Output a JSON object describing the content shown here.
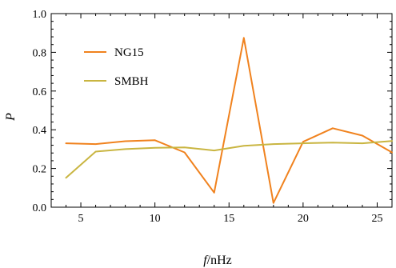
{
  "chart_data": {
    "type": "line",
    "title": "",
    "xlabel_italic": "f",
    "xlabel_unit": "/nHz",
    "ylabel": "P",
    "xlim": [
      3,
      26
    ],
    "ylim": [
      0.0,
      1.0
    ],
    "xticks": [
      5,
      10,
      15,
      20,
      25
    ],
    "xtick_labels": [
      "5",
      "10",
      "15",
      "20",
      "25"
    ],
    "yticks": [
      0.0,
      0.2,
      0.4,
      0.6,
      0.8,
      1.0
    ],
    "ytick_labels": [
      "0.0",
      "0.2",
      "0.4",
      "0.6",
      "0.8",
      "1.0"
    ],
    "grid": false,
    "legend_position": "top-left",
    "series": [
      {
        "name": "NG15",
        "color": "#f0821e",
        "x": [
          4,
          6,
          8,
          10,
          12,
          14,
          16,
          18,
          20,
          22,
          24,
          26
        ],
        "y": [
          0.33,
          0.326,
          0.341,
          0.346,
          0.283,
          0.075,
          0.875,
          0.022,
          0.338,
          0.408,
          0.37,
          0.283
        ]
      },
      {
        "name": "SMBH",
        "color": "#c9b541",
        "x": [
          4,
          6,
          8,
          10,
          12,
          14,
          16,
          18,
          20,
          22,
          24,
          26
        ],
        "y": [
          0.152,
          0.287,
          0.3,
          0.307,
          0.309,
          0.293,
          0.317,
          0.326,
          0.33,
          0.334,
          0.33,
          0.342
        ]
      }
    ]
  }
}
